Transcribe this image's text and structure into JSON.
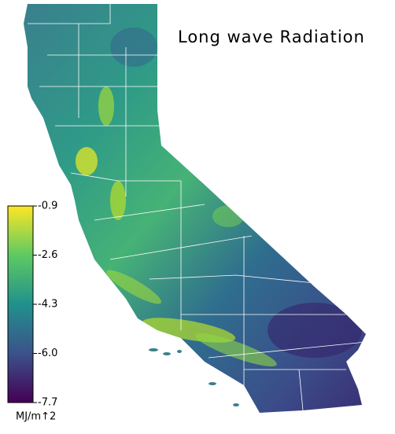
{
  "title": "Long wave Radiation",
  "colorbar": {
    "lim": [
      -7.7,
      -0.9
    ],
    "ticks": [
      -0.9,
      -2.6,
      -4.3,
      {
        "value": -6.0,
        "label": "-6.0"
      },
      -7.7
    ],
    "unit": "MJ/m↑2"
  }
}
